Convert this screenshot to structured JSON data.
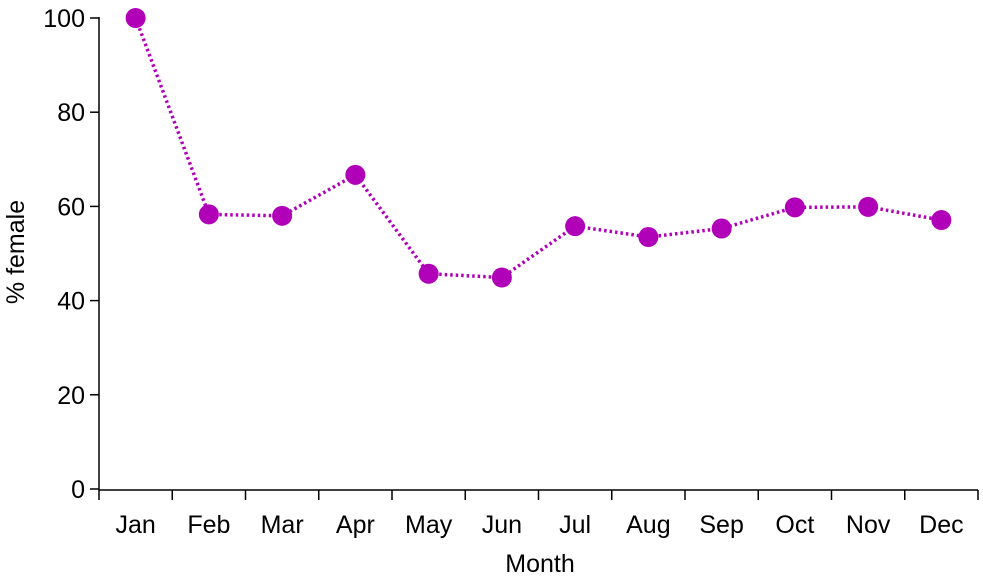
{
  "chart_data": {
    "type": "line",
    "xlabel": "Month",
    "ylabel": "% female",
    "categories": [
      "Jan",
      "Feb",
      "Mar",
      "Apr",
      "May",
      "Jun",
      "Jul",
      "Aug",
      "Sep",
      "Oct",
      "Nov",
      "Dec"
    ],
    "series": [
      {
        "values": [
          100,
          58.3,
          58.0,
          66.7,
          45.7,
          44.9,
          55.8,
          53.5,
          55.3,
          59.8,
          59.9,
          57.1
        ],
        "color": "#b000b8",
        "line_style": "dotted",
        "marker": "circle"
      }
    ],
    "ylim": [
      0,
      100
    ],
    "yticks": [
      0,
      20,
      40,
      60,
      80,
      100
    ],
    "grid": false,
    "legend": "none"
  }
}
